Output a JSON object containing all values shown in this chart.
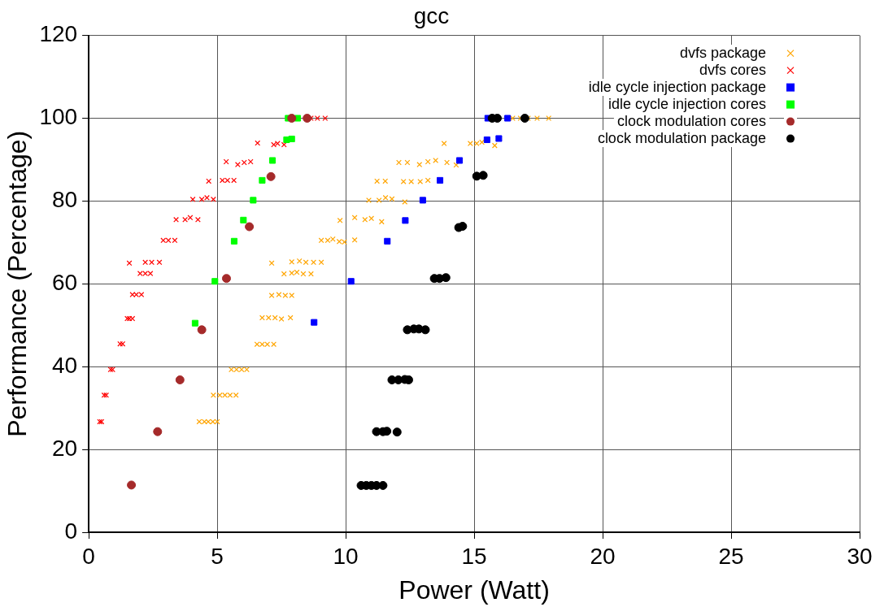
{
  "chart_data": {
    "type": "scatter",
    "title": "gcc",
    "xlabel": "Power (Watt)",
    "ylabel": "Performance (Percentage)",
    "xlim": [
      0,
      30
    ],
    "xticks": [
      0,
      5,
      10,
      15,
      20,
      25,
      30
    ],
    "ylim": [
      0,
      120
    ],
    "yticks": [
      0,
      20,
      40,
      60,
      80,
      100,
      120
    ],
    "grid": true,
    "legend": "top right",
    "series": [
      {
        "name": "dvfs package",
        "color": "#ffa500",
        "marker": "cross",
        "x": [
          4.3,
          4.5,
          4.65,
          4.83,
          5.0,
          4.85,
          5.1,
          5.3,
          5.5,
          5.73,
          5.55,
          5.75,
          5.95,
          6.15,
          6.55,
          6.75,
          6.95,
          7.2,
          6.75,
          7.0,
          7.25,
          7.5,
          7.85,
          7.12,
          7.4,
          7.65,
          7.9,
          7.6,
          7.9,
          8.1,
          8.35,
          8.65,
          7.12,
          7.9,
          8.2,
          8.45,
          8.75,
          9.05,
          9.05,
          9.3,
          9.5,
          9.75,
          9.95,
          10.35,
          9.78,
          10.35,
          10.75,
          11.0,
          11.4,
          10.9,
          11.3,
          11.55,
          11.8,
          12.3,
          11.22,
          11.54,
          12.25,
          12.55,
          12.9,
          13.2,
          12.07,
          12.4,
          12.87,
          13.2,
          13.5,
          13.94,
          14.3,
          13.83,
          14.85,
          15.1,
          15.3,
          15.8,
          16.5,
          16.8,
          17.1,
          17.45,
          17.9
        ],
        "values": [
          26.7,
          26.7,
          26.7,
          26.7,
          26.7,
          33.1,
          33.1,
          33.1,
          33.1,
          33.1,
          39.3,
          39.3,
          39.3,
          39.3,
          45.4,
          45.4,
          45.4,
          45.4,
          51.8,
          51.8,
          51.8,
          51.5,
          51.8,
          57.2,
          57.4,
          57.2,
          57.2,
          62.4,
          62.6,
          62.8,
          62.4,
          62.4,
          65,
          65.3,
          65.5,
          65.2,
          65.2,
          65.2,
          70.5,
          70.5,
          70.8,
          70.2,
          70.1,
          70.6,
          75.3,
          76,
          75.5,
          75.8,
          75,
          80.2,
          80.2,
          80.8,
          80.5,
          79.8,
          84.8,
          84.8,
          84.7,
          84.7,
          84.7,
          85,
          89.3,
          89.3,
          88.8,
          89.5,
          89.8,
          89.3,
          88.7,
          93.9,
          93.9,
          93.9,
          94.2,
          93.4,
          100,
          100,
          100,
          100,
          100
        ]
      },
      {
        "name": "dvfs cores",
        "color": "#ff0000",
        "marker": "cross",
        "x": [
          0.43,
          0.5,
          0.6,
          0.68,
          0.85,
          0.93,
          1.22,
          1.32,
          1.5,
          1.58,
          1.7,
          1.7,
          1.85,
          2.05,
          2.0,
          2.2,
          2.4,
          1.58,
          2.2,
          2.45,
          2.75,
          2.9,
          3.1,
          3.35,
          3.4,
          3.75,
          3.95,
          4.25,
          4.05,
          4.4,
          4.6,
          4.85,
          4.67,
          5.2,
          5.4,
          5.65,
          5.35,
          5.8,
          6.05,
          6.3,
          6.5,
          6.57,
          7.2,
          7.35,
          7.6,
          8.4,
          8.65,
          8.9,
          9.2
        ],
        "values": [
          26.7,
          26.7,
          33.1,
          33.1,
          39.3,
          39.3,
          45.5,
          45.5,
          51.6,
          51.6,
          51.6,
          57.4,
          57.4,
          57.4,
          62.5,
          62.5,
          62.5,
          65,
          65.2,
          65.2,
          65.2,
          70.5,
          70.5,
          70.5,
          75.5,
          75.5,
          76,
          75.5,
          80.4,
          80.4,
          80.8,
          80.4,
          84.8,
          85,
          85,
          85,
          89.5,
          88.8,
          89.3,
          89.5,
          null,
          94,
          93.6,
          93.9,
          93.6,
          null,
          100,
          100,
          100
        ]
      },
      {
        "name": "idle cycle injection package",
        "color": "#0000ff",
        "marker": "square",
        "x": [
          8.77,
          10.21,
          11.62,
          12.32,
          13.0,
          13.67,
          14.43,
          15.5,
          15.96,
          15.53,
          16.3
        ],
        "values": [
          50.7,
          60.6,
          70.3,
          75.3,
          80.2,
          85,
          89.8,
          94.8,
          95.1,
          100,
          100
        ]
      },
      {
        "name": "idle cycle injection cores",
        "color": "#00ff00",
        "marker": "square",
        "x": [
          4.14,
          4.91,
          5.66,
          6.02,
          6.4,
          6.75,
          7.15,
          7.7,
          7.9,
          7.76,
          8.13
        ],
        "values": [
          50.5,
          60.6,
          70.3,
          75.4,
          80.2,
          85,
          89.8,
          94.8,
          95,
          100,
          100
        ]
      },
      {
        "name": "clock modulation cores",
        "color": "#a52a2a",
        "marker": "circle",
        "x": [
          1.66,
          2.68,
          3.55,
          4.4,
          5.36,
          6.25,
          7.09,
          7.9,
          8.5
        ],
        "values": [
          11.4,
          24.3,
          36.8,
          48.9,
          61.3,
          73.8,
          85.9,
          100,
          100
        ]
      },
      {
        "name": "clock modulation package",
        "color": "#000000",
        "marker": "circle",
        "x": [
          10.6,
          10.8,
          11.0,
          11.2,
          11.45,
          11.2,
          11.45,
          11.6,
          12.0,
          11.8,
          12.05,
          12.3,
          12.45,
          12.4,
          12.65,
          12.85,
          13.1,
          13.45,
          13.65,
          13.9,
          14.4,
          14.55,
          15.1,
          15.35,
          15.7,
          15.9,
          16.97
        ],
        "values": [
          11.3,
          11.3,
          11.3,
          11.3,
          11.3,
          24.3,
          24.3,
          24.4,
          24.2,
          36.8,
          36.8,
          36.9,
          36.8,
          48.9,
          49.1,
          49.1,
          48.9,
          61.3,
          61.3,
          61.5,
          73.6,
          73.9,
          86,
          86.2,
          100,
          100,
          100
        ]
      }
    ]
  }
}
